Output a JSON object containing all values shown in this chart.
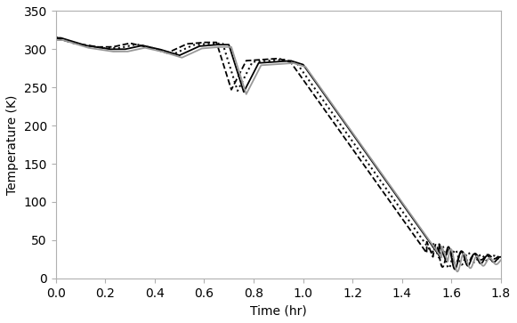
{
  "title": "",
  "xlabel": "Time (hr)",
  "ylabel": "Temperature (K)",
  "xlim": [
    0,
    1.8
  ],
  "ylim": [
    0,
    350
  ],
  "xticks": [
    0,
    0.2,
    0.4,
    0.6,
    0.8,
    1.0,
    1.2,
    1.4,
    1.6,
    1.8
  ],
  "yticks": [
    0,
    50,
    100,
    150,
    200,
    250,
    300,
    350
  ],
  "lines": [
    {
      "style": "-",
      "color": "#000000",
      "lw": 1.3
    },
    {
      "style": "--",
      "color": "#000000",
      "lw": 1.3
    },
    {
      "style": ":",
      "color": "#111111",
      "lw": 1.5
    },
    {
      "style": "-",
      "color": "#999999",
      "lw": 1.3
    }
  ],
  "figsize": [
    5.81,
    3.63
  ],
  "dpi": 100
}
